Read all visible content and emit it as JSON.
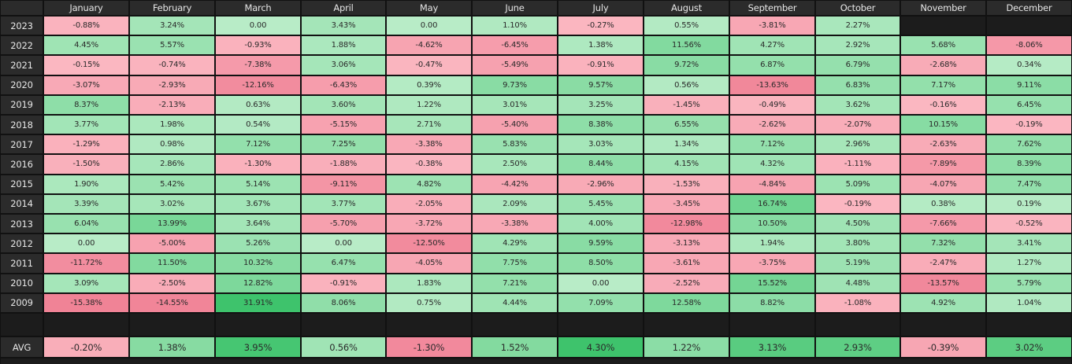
{
  "chart_data": {
    "type": "heatmap",
    "columns": [
      "January",
      "February",
      "March",
      "April",
      "May",
      "June",
      "July",
      "August",
      "September",
      "October",
      "November",
      "December"
    ],
    "rows": [
      {
        "year": "2023",
        "values": [
          "-0.88%",
          "3.24%",
          "0.00",
          "3.43%",
          "0.00",
          "1.10%",
          "-0.27%",
          "0.55%",
          "-3.81%",
          "2.27%",
          null,
          null
        ]
      },
      {
        "year": "2022",
        "values": [
          "4.45%",
          "5.57%",
          "-0.93%",
          "1.88%",
          "-4.62%",
          "-6.45%",
          "1.38%",
          "11.56%",
          "4.27%",
          "2.92%",
          "5.68%",
          "-8.06%"
        ]
      },
      {
        "year": "2021",
        "values": [
          "-0.15%",
          "-0.74%",
          "-7.38%",
          "3.06%",
          "-0.47%",
          "-5.49%",
          "-0.91%",
          "9.72%",
          "6.87%",
          "6.79%",
          "-2.68%",
          "0.34%"
        ]
      },
      {
        "year": "2020",
        "values": [
          "-3.07%",
          "-2.93%",
          "-12.16%",
          "-6.43%",
          "0.39%",
          "9.73%",
          "9.57%",
          "0.56%",
          "-13.63%",
          "6.83%",
          "7.17%",
          "9.11%"
        ]
      },
      {
        "year": "2019",
        "values": [
          "8.37%",
          "-2.13%",
          "0.63%",
          "3.60%",
          "1.22%",
          "3.01%",
          "3.25%",
          "-1.45%",
          "-0.49%",
          "3.62%",
          "-0.16%",
          "6.45%"
        ]
      },
      {
        "year": "2018",
        "values": [
          "3.77%",
          "1.98%",
          "0.54%",
          "-5.15%",
          "2.71%",
          "-5.40%",
          "8.38%",
          "6.55%",
          "-2.62%",
          "-2.07%",
          "10.15%",
          "-0.19%"
        ]
      },
      {
        "year": "2017",
        "values": [
          "-1.29%",
          "0.98%",
          "7.12%",
          "7.25%",
          "-3.38%",
          "5.83%",
          "3.03%",
          "1.34%",
          "7.12%",
          "2.96%",
          "-2.63%",
          "7.62%"
        ]
      },
      {
        "year": "2016",
        "values": [
          "-1.50%",
          "2.86%",
          "-1.30%",
          "-1.88%",
          "-0.38%",
          "2.50%",
          "8.44%",
          "4.15%",
          "4.32%",
          "-1.11%",
          "-7.89%",
          "8.39%"
        ]
      },
      {
        "year": "2015",
        "values": [
          "1.90%",
          "5.42%",
          "5.14%",
          "-9.11%",
          "4.82%",
          "-4.42%",
          "-2.96%",
          "-1.53%",
          "-4.84%",
          "5.09%",
          "-4.07%",
          "7.47%"
        ]
      },
      {
        "year": "2014",
        "values": [
          "3.39%",
          "3.02%",
          "3.67%",
          "3.77%",
          "-2.05%",
          "2.09%",
          "5.45%",
          "-3.45%",
          "16.74%",
          "-0.19%",
          "0.38%",
          "0.19%"
        ]
      },
      {
        "year": "2013",
        "values": [
          "6.04%",
          "13.99%",
          "3.64%",
          "-5.70%",
          "-3.72%",
          "-3.38%",
          "4.00%",
          "-12.98%",
          "10.50%",
          "4.50%",
          "-7.66%",
          "-0.52%"
        ]
      },
      {
        "year": "2012",
        "values": [
          "0.00",
          "-5.00%",
          "5.26%",
          "0.00",
          "-12.50%",
          "4.29%",
          "9.59%",
          "-3.13%",
          "1.94%",
          "3.80%",
          "7.32%",
          "3.41%"
        ]
      },
      {
        "year": "2011",
        "values": [
          "-11.72%",
          "11.50%",
          "10.32%",
          "6.47%",
          "-4.05%",
          "7.75%",
          "8.50%",
          "-3.61%",
          "-3.75%",
          "5.19%",
          "-2.47%",
          "1.27%"
        ]
      },
      {
        "year": "2010",
        "values": [
          "3.09%",
          "-2.50%",
          "12.82%",
          "-0.91%",
          "1.83%",
          "7.21%",
          "0.00",
          "-2.52%",
          "15.52%",
          "4.48%",
          "-13.57%",
          "5.79%"
        ]
      },
      {
        "year": "2009",
        "values": [
          "-15.38%",
          "-14.55%",
          "31.91%",
          "8.06%",
          "0.75%",
          "4.44%",
          "7.09%",
          "12.58%",
          "8.82%",
          "-1.08%",
          "4.92%",
          "1.04%"
        ]
      }
    ],
    "avg_label": "AVG",
    "avg": [
      "-0.20%",
      "1.38%",
      "3.95%",
      "0.56%",
      "-1.30%",
      "1.52%",
      "4.30%",
      "1.22%",
      "3.13%",
      "2.93%",
      "-0.39%",
      "3.02%"
    ],
    "colors": {
      "neg_light": "#fbb8c2",
      "neg_dark": "#f08195",
      "pos_light": "#b8ecc7",
      "pos_dark": "#3ec36c",
      "header_bg": "#2b2b2b",
      "header_text": "#e6e6e6"
    }
  }
}
